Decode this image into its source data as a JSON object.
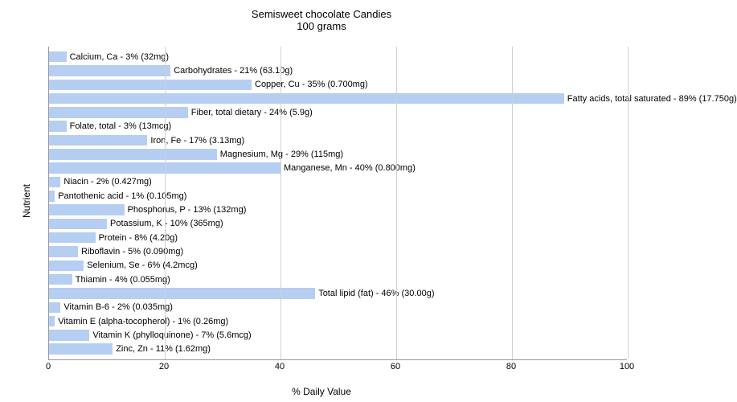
{
  "chart": {
    "type": "bar-horizontal",
    "title_line1": "Semisweet chocolate Candies",
    "title_line2": "100 grams",
    "title_fontsize": 13,
    "y_axis_label": "Nutrient",
    "x_axis_label": "% Daily Value",
    "axis_label_fontsize": 12,
    "bar_label_fontsize": 11,
    "x_min": 0,
    "x_max": 100,
    "x_ticks": [
      0,
      20,
      40,
      60,
      80,
      100
    ],
    "grid_color": "#cfcfcf",
    "bar_color": "#b6cef2",
    "background_color": "#ffffff",
    "bars_top_pad": 4,
    "bars_bottom_pad": 4,
    "nutrients": [
      {
        "label": "Calcium, Ca - 3% (32mg)",
        "pct": 3
      },
      {
        "label": "Carbohydrates - 21% (63.10g)",
        "pct": 21
      },
      {
        "label": "Copper, Cu - 35% (0.700mg)",
        "pct": 35
      },
      {
        "label": "Fatty acids, total saturated - 89% (17.750g)",
        "pct": 89
      },
      {
        "label": "Fiber, total dietary - 24% (5.9g)",
        "pct": 24
      },
      {
        "label": "Folate, total - 3% (13mcg)",
        "pct": 3
      },
      {
        "label": "Iron, Fe - 17% (3.13mg)",
        "pct": 17
      },
      {
        "label": "Magnesium, Mg - 29% (115mg)",
        "pct": 29
      },
      {
        "label": "Manganese, Mn - 40% (0.800mg)",
        "pct": 40
      },
      {
        "label": "Niacin - 2% (0.427mg)",
        "pct": 2
      },
      {
        "label": "Pantothenic acid - 1% (0.105mg)",
        "pct": 1
      },
      {
        "label": "Phosphorus, P - 13% (132mg)",
        "pct": 13
      },
      {
        "label": "Potassium, K - 10% (365mg)",
        "pct": 10
      },
      {
        "label": "Protein - 8% (4.20g)",
        "pct": 8
      },
      {
        "label": "Riboflavin - 5% (0.090mg)",
        "pct": 5
      },
      {
        "label": "Selenium, Se - 6% (4.2mcg)",
        "pct": 6
      },
      {
        "label": "Thiamin - 4% (0.055mg)",
        "pct": 4
      },
      {
        "label": "Total lipid (fat) - 46% (30.00g)",
        "pct": 46
      },
      {
        "label": "Vitamin B-6 - 2% (0.035mg)",
        "pct": 2
      },
      {
        "label": "Vitamin E (alpha-tocopherol) - 1% (0.26mg)",
        "pct": 1
      },
      {
        "label": "Vitamin K (phylloquinone) - 7% (5.6mcg)",
        "pct": 7
      },
      {
        "label": "Zinc, Zn - 11% (1.62mg)",
        "pct": 11
      }
    ]
  }
}
